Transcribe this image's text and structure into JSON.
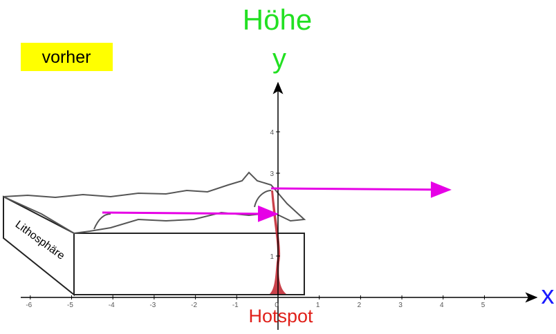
{
  "header": {
    "state": "vorher"
  },
  "axes": {
    "y_title": "Höhe",
    "y_label": "y",
    "x_label": "x",
    "x_ticks": [
      -6,
      -5,
      -4,
      -3,
      -2,
      -1,
      0,
      1,
      2,
      3,
      4,
      5
    ],
    "y_ticks": [
      1,
      3,
      4
    ]
  },
  "labels": {
    "hotspot": "Hotspot",
    "lithosphere": "Lithosphäre"
  }
}
